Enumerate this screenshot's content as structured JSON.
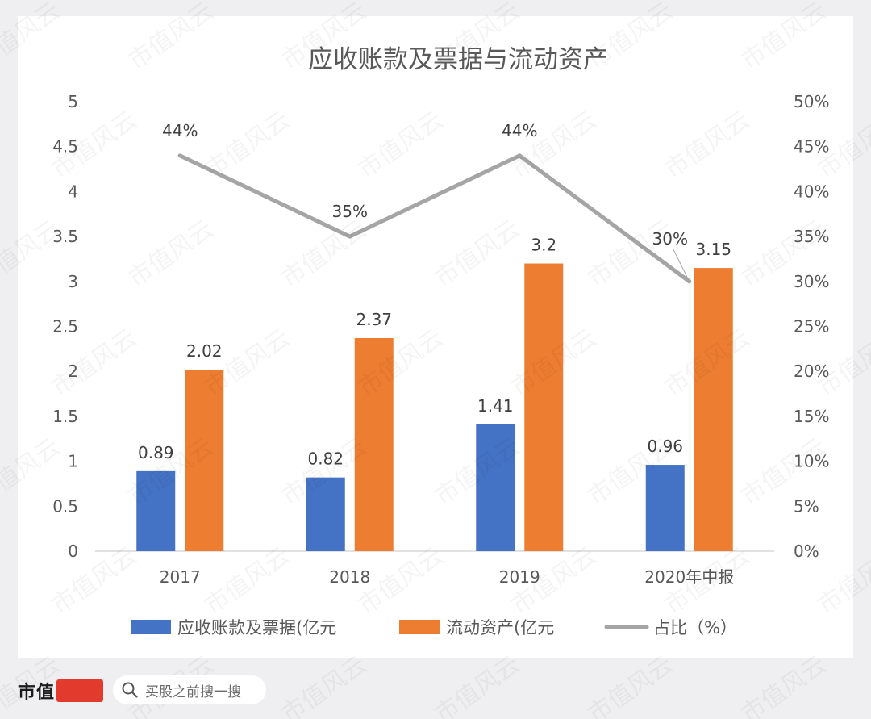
{
  "chart_data": {
    "type": "bar",
    "title": "应收账款及票据与流动资产",
    "categories": [
      "2017",
      "2018",
      "2019",
      "2020年中报"
    ],
    "series": [
      {
        "name": "应收账款及票据(亿元",
        "kind": "bar",
        "axis": "left",
        "color": "#4472c4",
        "values": [
          0.89,
          0.82,
          1.41,
          0.96
        ],
        "labels": [
          "0.89",
          "0.82",
          "1.41",
          "0.96"
        ]
      },
      {
        "name": "流动资产(亿元",
        "kind": "bar",
        "axis": "left",
        "color": "#ed7d31",
        "values": [
          2.02,
          2.37,
          3.2,
          3.15
        ],
        "labels": [
          "2.02",
          "2.37",
          "3.2",
          "3.15"
        ]
      },
      {
        "name": "占比（%）",
        "kind": "line",
        "axis": "right",
        "color": "#a5a5a5",
        "values": [
          0.44,
          0.35,
          0.44,
          0.3
        ],
        "labels": [
          "44%",
          "35%",
          "44%",
          "30%"
        ]
      }
    ],
    "y_left": {
      "range": [
        0,
        5
      ],
      "ticks": [
        "0",
        "0.5",
        "1",
        "1.5",
        "2",
        "2.5",
        "3",
        "3.5",
        "4",
        "4.5",
        "5"
      ]
    },
    "y_right": {
      "range": [
        0,
        0.5
      ],
      "ticks": [
        "0%",
        "5%",
        "10%",
        "15%",
        "20%",
        "25%",
        "30%",
        "35%",
        "40%",
        "45%",
        "50%"
      ]
    },
    "grid": false,
    "legend_position": "bottom"
  },
  "watermark": {
    "text": "市值风云"
  },
  "footer": {
    "brand": "市值",
    "search_icon": "search-icon",
    "search_placeholder": "买股之前搜一搜"
  }
}
